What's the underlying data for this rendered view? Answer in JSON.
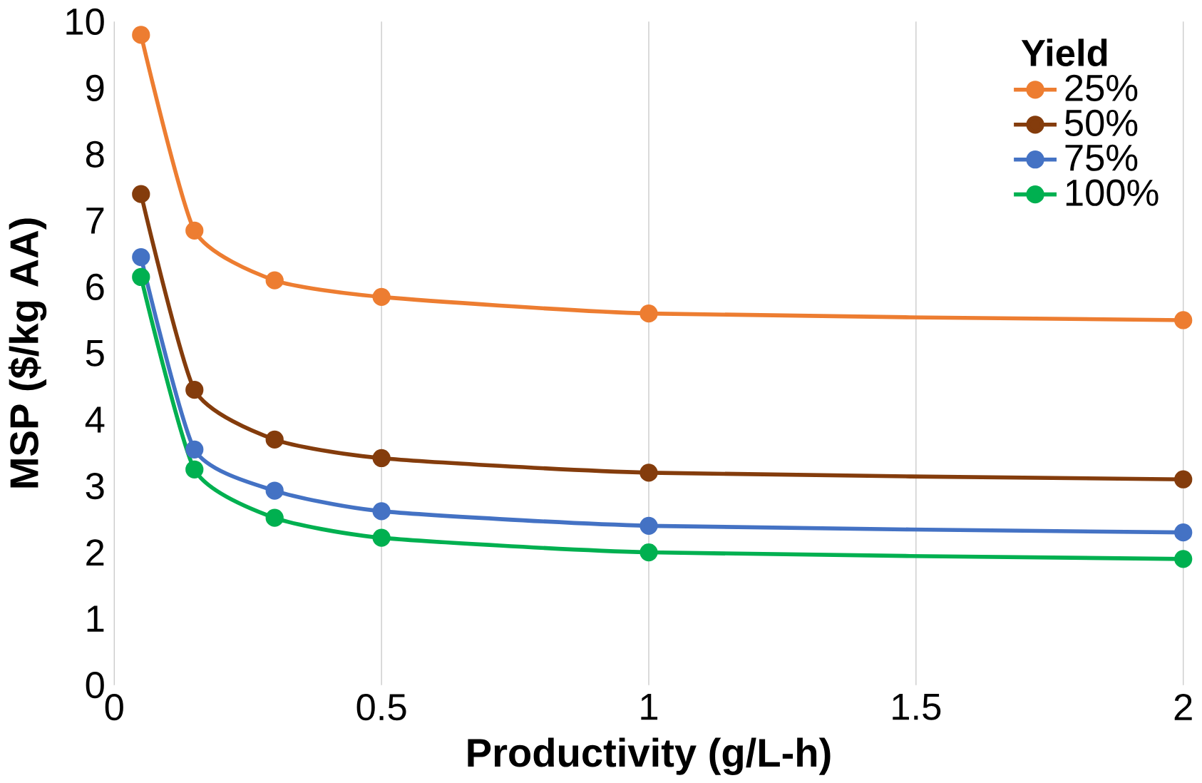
{
  "chart_data": {
    "type": "line",
    "xlabel": "Productivity (g/L-h)",
    "ylabel": "MSP ($/kg AA)",
    "legend_title": "Yield",
    "x": [
      0.05,
      0.15,
      0.3,
      0.5,
      1,
      2
    ],
    "series": [
      {
        "name": "25%",
        "color": "#ed7d31",
        "values": [
          9.8,
          6.85,
          6.1,
          5.85,
          5.6,
          5.5
        ]
      },
      {
        "name": "50%",
        "color": "#843c0c",
        "values": [
          7.4,
          4.45,
          3.7,
          3.42,
          3.2,
          3.1
        ]
      },
      {
        "name": "75%",
        "color": "#4472c4",
        "values": [
          6.45,
          3.55,
          2.93,
          2.62,
          2.4,
          2.3
        ]
      },
      {
        "name": "100%",
        "color": "#00b050",
        "values": [
          6.15,
          3.25,
          2.52,
          2.22,
          2.0,
          1.9
        ]
      }
    ],
    "xlim": [
      0,
      2
    ],
    "ylim": [
      0,
      10
    ],
    "xticks": [
      0,
      0.5,
      1,
      1.5,
      2
    ],
    "yticks": [
      0,
      1,
      2,
      3,
      4,
      5,
      6,
      7,
      8,
      9,
      10
    ],
    "grid": "x",
    "legend": "top right",
    "marker": "circle",
    "line_style": "solid"
  }
}
